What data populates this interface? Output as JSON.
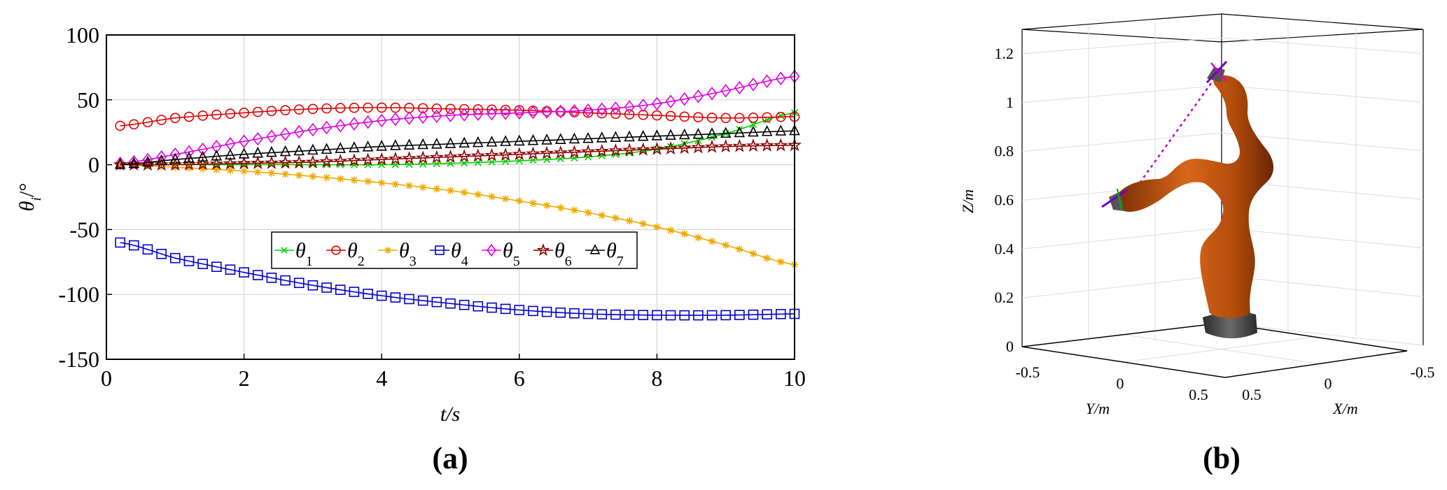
{
  "chart_data": [
    {
      "panel_label": "(a)",
      "type": "line",
      "xlabel": "t/s",
      "ylabel_symbol": "θ",
      "ylabel_sub": "i",
      "ylabel_unit": "/°",
      "xlim": [
        0,
        10
      ],
      "ylim": [
        -150,
        100
      ],
      "xticks": [
        0,
        2,
        4,
        6,
        8,
        10
      ],
      "yticks": [
        100,
        50,
        0,
        -50,
        -100,
        -150
      ],
      "grid": true,
      "legend_position": "center, single row",
      "x": [
        0.2,
        1,
        2,
        3,
        4,
        5,
        6,
        7,
        8,
        9,
        10
      ],
      "series": [
        {
          "name": "θ1",
          "symbol": "θ",
          "sub": "1",
          "marker": "x",
          "color": "#00d000",
          "values": [
            0,
            0,
            0,
            0,
            0,
            1,
            3,
            6,
            12,
            24,
            40
          ]
        },
        {
          "name": "θ2",
          "symbol": "θ",
          "sub": "2",
          "marker": "circle",
          "color": "#e00000",
          "values": [
            30,
            36,
            40,
            43,
            44,
            43,
            42,
            40,
            38,
            36,
            37
          ]
        },
        {
          "name": "θ3",
          "symbol": "θ",
          "sub": "3",
          "marker": "asterisk",
          "color": "#f0a800",
          "values": [
            0,
            -2,
            -5,
            -9,
            -14,
            -20,
            -28,
            -37,
            -48,
            -62,
            -77
          ]
        },
        {
          "name": "θ4",
          "symbol": "θ",
          "sub": "4",
          "marker": "square",
          "color": "#0000d0",
          "values": [
            -60,
            -72,
            -83,
            -93,
            -101,
            -107,
            -112,
            -115,
            -116,
            -116,
            -115
          ]
        },
        {
          "name": "θ5",
          "symbol": "θ",
          "sub": "5",
          "marker": "diamond",
          "color": "#e000e0",
          "values": [
            1,
            8,
            18,
            27,
            34,
            38,
            40,
            42,
            47,
            57,
            68
          ]
        },
        {
          "name": "θ6",
          "symbol": "θ",
          "sub": "6",
          "marker": "star",
          "color": "#8b0000",
          "values": [
            0,
            0,
            1,
            2,
            4,
            6,
            8,
            10,
            12,
            14,
            15
          ]
        },
        {
          "name": "θ7",
          "symbol": "θ",
          "sub": "7",
          "marker": "triangle",
          "color": "#000000",
          "values": [
            0,
            4,
            8,
            11,
            14,
            16,
            18,
            20,
            22,
            24,
            26
          ]
        }
      ]
    },
    {
      "panel_label": "(b)",
      "type": "3d-render",
      "xlabel": "X/m",
      "ylabel": "Y/m",
      "zlabel": "Z/m",
      "xticks": [
        "0.5",
        "0",
        "-0.5"
      ],
      "yticks": [
        "-0.5",
        "0",
        "0.5"
      ],
      "zticks": [
        "0",
        "0.2",
        "0.4",
        "0.6",
        "0.8",
        "1",
        "1.2"
      ],
      "grid": true
    }
  ],
  "colors": {
    "robot_body": "#c85a10",
    "robot_base": "#4a4a4a",
    "trajectory_line": "#c000c0"
  }
}
